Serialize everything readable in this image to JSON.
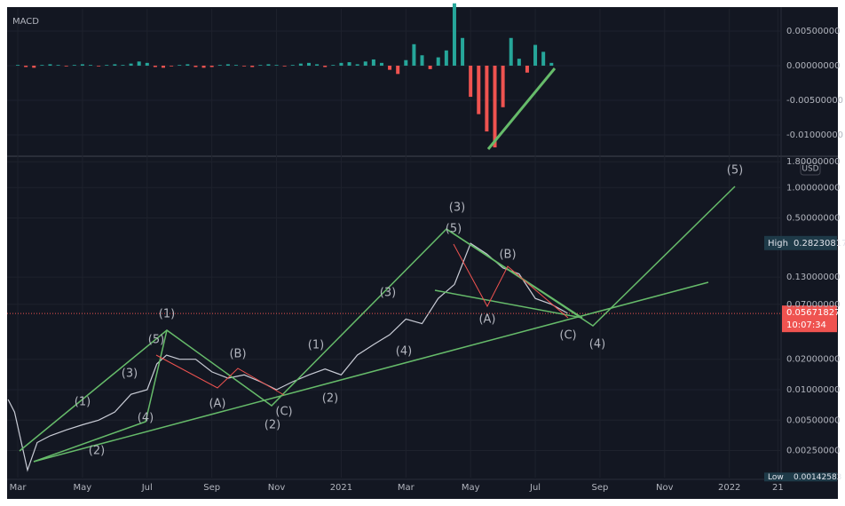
{
  "chart_data": [
    {
      "type": "bar",
      "title": "MACD",
      "x": [
        0,
        0.25,
        0.5,
        0.75,
        1,
        1.25,
        1.5,
        1.75,
        2,
        2.25,
        2.5,
        2.75,
        3,
        3.25,
        3.5,
        3.75,
        4,
        4.25,
        4.5,
        4.75,
        5,
        5.25,
        5.5,
        5.75,
        6,
        6.25,
        6.5,
        6.75,
        7,
        7.25,
        7.5,
        7.75,
        8,
        8.25,
        8.5,
        8.75,
        9,
        9.25,
        9.5,
        9.75,
        10,
        10.25,
        10.5,
        10.75,
        11,
        11.25,
        11.5,
        11.75,
        12,
        12.25,
        12.5,
        12.75,
        13,
        13.25,
        13.5,
        13.75,
        14,
        14.25,
        14.5,
        14.75,
        15,
        15.25,
        15.5,
        15.75,
        16,
        16.25,
        16.5
      ],
      "values": [
        0.0001,
        -0.0002,
        -0.0003,
        0.0001,
        0.0002,
        0.0001,
        -0.0001,
        0.0001,
        0.0002,
        0.0001,
        -0.0001,
        0.0001,
        0.0002,
        0.0001,
        0.0003,
        0.0006,
        0.0004,
        -0.0002,
        -0.0003,
        -0.0001,
        0.0001,
        0.0002,
        -0.0002,
        -0.0003,
        -0.0002,
        0.0001,
        0.0002,
        0.0001,
        -0.0001,
        -0.0002,
        0.0001,
        0.0002,
        0.0001,
        -0.0001,
        0.0001,
        0.0003,
        0.0004,
        0.0002,
        -0.0002,
        0.0001,
        0.0004,
        0.0005,
        0.0002,
        0.0006,
        0.0009,
        0.0004,
        -0.0006,
        -0.0012,
        0.0008,
        0.0031,
        0.0015,
        -0.0005,
        0.0012,
        0.0022,
        0.009,
        0.004,
        -0.0045,
        -0.007,
        -0.0095,
        -0.0118,
        -0.006,
        0.004,
        0.001,
        -0.001,
        0.003,
        0.002,
        0.0004
      ],
      "up_color": "#26a69a",
      "down_color": "#ef5350",
      "ylim": [
        -0.01295,
        0.0082
      ],
      "yticks": [
        {
          "value": 0.005,
          "label": "0.00500000"
        },
        {
          "value": 0,
          "label": "0.00000000"
        },
        {
          "value": -0.005,
          "label": "-0.00500000"
        },
        {
          "value": -0.01,
          "label": "-0.01000000"
        }
      ],
      "grid": true
    },
    {
      "type": "line",
      "currency": "USD",
      "log_scale": true,
      "grid": true,
      "color": "#c9ccd6",
      "x": [
        -0.3,
        -0.1,
        0.3,
        0.6,
        1,
        1.5,
        2,
        2.5,
        3,
        3.5,
        4,
        4.3,
        4.6,
        5,
        5.5,
        6,
        6.5,
        7,
        7.5,
        8,
        8.5,
        9,
        9.5,
        10,
        10.5,
        11,
        11.5,
        12,
        12.5,
        13,
        13.5,
        14,
        14.5,
        15,
        15.5,
        16,
        16.5,
        17
      ],
      "values": [
        0.008,
        0.006,
        0.0016,
        0.003,
        0.0035,
        0.004,
        0.0045,
        0.005,
        0.006,
        0.009,
        0.01,
        0.018,
        0.022,
        0.02,
        0.02,
        0.015,
        0.013,
        0.014,
        0.012,
        0.01,
        0.012,
        0.014,
        0.016,
        0.014,
        0.022,
        0.028,
        0.035,
        0.05,
        0.045,
        0.08,
        0.11,
        0.28,
        0.22,
        0.16,
        0.14,
        0.08,
        0.07,
        0.057
      ],
      "xlim": [
        -0.33,
        23.6
      ],
      "xticks": [
        {
          "value": 0,
          "label": "Mar"
        },
        {
          "value": 2,
          "label": "May"
        },
        {
          "value": 4,
          "label": "Jul"
        },
        {
          "value": 6,
          "label": "Sep"
        },
        {
          "value": 8,
          "label": "Nov"
        },
        {
          "value": 10,
          "label": "2021"
        },
        {
          "value": 12,
          "label": "Mar"
        },
        {
          "value": 14,
          "label": "May"
        },
        {
          "value": 16,
          "label": "Jul"
        },
        {
          "value": 18,
          "label": "Sep"
        },
        {
          "value": 20,
          "label": "Nov"
        },
        {
          "value": 22,
          "label": "2022"
        },
        {
          "value": 23.5,
          "label": "21"
        }
      ],
      "ylim": [
        0.00135,
        1.96
      ],
      "yticks": [
        {
          "value": 1.8,
          "label": "1.80000000"
        },
        {
          "value": 1,
          "label": "1.00000000"
        },
        {
          "value": 0.5,
          "label": "0.50000000"
        },
        {
          "value": 0.13,
          "label": "0.13000000"
        },
        {
          "value": 0.07,
          "label": "0.07000000"
        },
        {
          "value": 0.02,
          "label": "0.02000000"
        },
        {
          "value": 0.01,
          "label": "0.01000000"
        },
        {
          "value": 0.005,
          "label": "0.00500000"
        },
        {
          "value": 0.0025,
          "label": "0.00250000"
        }
      ],
      "high_label": "High",
      "high": 0.28230817,
      "low_label": "Low",
      "low": 0.00142583,
      "last_price": 0.05671827,
      "countdown": "10:07:34",
      "last_color": "#ef5350",
      "wave_labels": [
        {
          "text": "(1)",
          "color": "#81c784"
        },
        {
          "text": "(2)",
          "color": "#81c784"
        },
        {
          "text": "(3)",
          "color": "#81c784"
        },
        {
          "text": "(4)",
          "color": "#81c784"
        },
        {
          "text": "(5)",
          "color": "#81c784"
        },
        {
          "text": "(1)",
          "color": "#f3e5a8"
        },
        {
          "text": "(2)",
          "color": "#f3e5a8"
        },
        {
          "text": "(3)",
          "color": "#f3e5a8"
        },
        {
          "text": "(4)",
          "color": "#f3e5a8"
        },
        {
          "text": "(5)",
          "color": "#f3e5a8"
        },
        {
          "text": "(1)",
          "color": "#f3e5a8"
        },
        {
          "text": "(2)",
          "color": "#f3e5a8"
        },
        {
          "text": "(3)",
          "color": "#f3e5a8"
        },
        {
          "text": "(4)",
          "color": "#f3e5a8"
        },
        {
          "text": "(5)",
          "color": "#f3e5a8"
        },
        {
          "text": "(A)",
          "color": "#ef5350"
        },
        {
          "text": "(B)",
          "color": "#ef5350"
        },
        {
          "text": "(C)",
          "color": "#ef5350"
        },
        {
          "text": "(A)",
          "color": "#ef5350"
        },
        {
          "text": "(B)",
          "color": "#ef5350"
        },
        {
          "text": "(C)",
          "color": "#ef5350"
        }
      ]
    }
  ]
}
